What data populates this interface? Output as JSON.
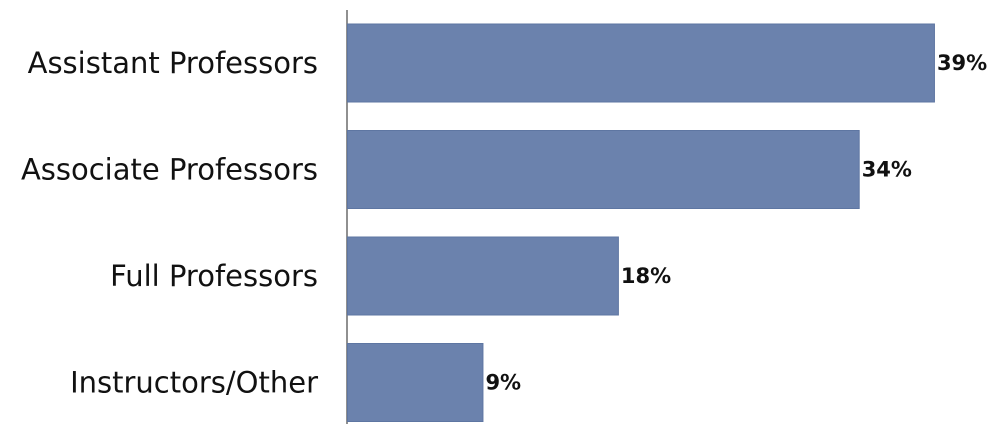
{
  "chart_data": {
    "type": "bar",
    "orientation": "horizontal",
    "categories": [
      "Assistant Professors",
      "Associate Professors",
      "Full Professors",
      "Instructors/Other"
    ],
    "values": [
      39,
      34,
      18,
      9
    ],
    "value_labels": [
      "39%",
      "34%",
      "18%",
      "9%"
    ],
    "xlim": [
      0,
      42
    ],
    "grid": false,
    "legend": "none",
    "colors": {
      "bar": "#6b82ad",
      "text": "#111111",
      "axis": "#222222"
    }
  }
}
